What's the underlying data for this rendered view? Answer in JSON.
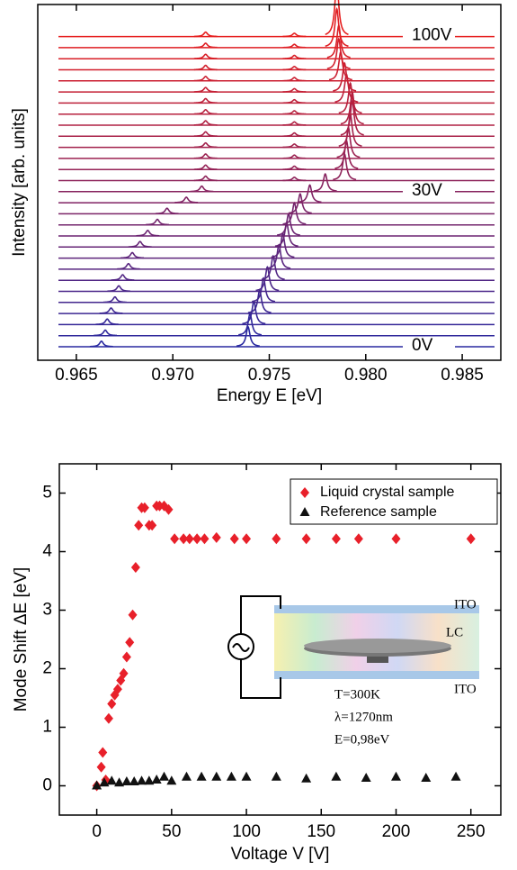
{
  "chart_data": [
    {
      "type": "waterfall",
      "xlabel": "Energy E [eV]",
      "ylabel": "Intensity [arb. units]",
      "xlim": [
        0.963,
        0.987
      ],
      "xticks": [
        0.965,
        {
          "value": 0.97,
          "label": "0.970"
        },
        0.975,
        {
          "value": 0.98,
          "label": "0.980"
        },
        0.985
      ],
      "series": [
        {
          "color": "#2828a0",
          "peaks": [
            0.9663,
            0.9739
          ],
          "heights": [
            0.5,
            1.8
          ],
          "label": "0V"
        },
        {
          "color": "#2f289b",
          "peaks": [
            0.9665,
            0.974
          ],
          "heights": [
            0.5,
            2.0
          ]
        },
        {
          "color": "#352797",
          "peaks": [
            0.9666,
            0.9742
          ],
          "heights": [
            0.5,
            2.1
          ]
        },
        {
          "color": "#3c2792",
          "peaks": [
            0.9668,
            0.9745
          ],
          "heights": [
            0.5,
            2.1
          ]
        },
        {
          "color": "#43278d",
          "peaks": [
            0.967,
            0.9747
          ],
          "heights": [
            0.5,
            2.2
          ]
        },
        {
          "color": "#4a2689",
          "peaks": [
            0.9672,
            0.9749
          ],
          "heights": [
            0.5,
            2.2
          ]
        },
        {
          "color": "#512684",
          "peaks": [
            0.9674,
            0.9752
          ],
          "heights": [
            0.5,
            2.2
          ]
        },
        {
          "color": "#582680",
          "peaks": [
            0.9677,
            0.9755
          ],
          "heights": [
            0.5,
            2.2
          ]
        },
        {
          "color": "#5e257b",
          "peaks": [
            0.9679,
            0.9757
          ],
          "heights": [
            0.5,
            2.2
          ]
        },
        {
          "color": "#652576",
          "peaks": [
            0.9683,
            0.9759
          ],
          "heights": [
            0.5,
            2.2
          ]
        },
        {
          "color": "#6c2472",
          "peaks": [
            0.9687,
            0.976
          ],
          "heights": [
            0.5,
            2.0
          ]
        },
        {
          "color": "#73246d",
          "peaks": [
            0.9692,
            0.9763
          ],
          "heights": [
            0.5,
            2.0
          ]
        },
        {
          "color": "#7a2468",
          "peaks": [
            0.9697,
            0.9766
          ],
          "heights": [
            0.5,
            1.8
          ]
        },
        {
          "color": "#802364",
          "peaks": [
            0.9707,
            0.9771
          ],
          "heights": [
            0.5,
            1.6
          ]
        },
        {
          "color": "#87235f",
          "peaks": [
            0.9715,
            0.9779
          ],
          "heights": [
            0.5,
            1.6
          ],
          "label": "30V"
        },
        {
          "color": "#8e235a",
          "peaks": [
            0.9717,
            0.9763,
            0.9789
          ],
          "heights": [
            0.4,
            0.3,
            2.4
          ]
        },
        {
          "color": "#952256",
          "peaks": [
            0.9717,
            0.9763,
            0.979
          ],
          "heights": [
            0.4,
            0.3,
            2.6
          ]
        },
        {
          "color": "#9b2251",
          "peaks": [
            0.9717,
            0.9763,
            0.9791
          ],
          "heights": [
            0.4,
            0.3,
            2.8
          ]
        },
        {
          "color": "#a2224c",
          "peaks": [
            0.9717,
            0.9763,
            0.9792
          ],
          "heights": [
            0.4,
            0.3,
            3.0
          ]
        },
        {
          "color": "#a92148",
          "peaks": [
            0.9717,
            0.9763,
            0.9793
          ],
          "heights": [
            0.4,
            0.3,
            3.2
          ]
        },
        {
          "color": "#b02143",
          "peaks": [
            0.9717,
            0.9763,
            0.9793
          ],
          "heights": [
            0.4,
            0.3,
            3.0
          ]
        },
        {
          "color": "#b7213e",
          "peaks": [
            0.9717,
            0.9763,
            0.9792
          ],
          "heights": [
            0.4,
            0.3,
            2.8
          ]
        },
        {
          "color": "#bd203a",
          "peaks": [
            0.9717,
            0.9763,
            0.979
          ],
          "heights": [
            0.4,
            0.3,
            2.6
          ]
        },
        {
          "color": "#c42035",
          "peaks": [
            0.9717,
            0.9763,
            0.9789
          ],
          "heights": [
            0.4,
            0.3,
            2.6
          ]
        },
        {
          "color": "#cb1f31",
          "peaks": [
            0.9717,
            0.9763,
            0.9787
          ],
          "heights": [
            0.4,
            0.3,
            2.6
          ]
        },
        {
          "color": "#d21f2c",
          "peaks": [
            0.9717,
            0.9763,
            0.9786
          ],
          "heights": [
            0.4,
            0.3,
            2.8
          ]
        },
        {
          "color": "#d81f27",
          "peaks": [
            0.9717,
            0.9763,
            0.9786
          ],
          "heights": [
            0.4,
            0.3,
            3.0
          ]
        },
        {
          "color": "#df1e23",
          "peaks": [
            0.9717,
            0.9763,
            0.9785
          ],
          "heights": [
            0.4,
            0.3,
            3.5
          ]
        },
        {
          "color": "#e61e1e",
          "peaks": [
            0.9717,
            0.9763,
            0.9785
          ],
          "heights": [
            0.4,
            0.3,
            5.0
          ],
          "label": "100V"
        }
      ]
    },
    {
      "type": "scatter",
      "xlabel": "Voltage V [V]",
      "ylabel": "Mode Shift ΔE [eV]",
      "xlim": [
        -25,
        270
      ],
      "ylim": [
        -0.5,
        5.5
      ],
      "xticks": [
        0,
        50,
        100,
        150,
        200,
        250
      ],
      "yticks": [
        0,
        1,
        2,
        3,
        4,
        5
      ],
      "legend": "upper right",
      "series": [
        {
          "name": "Liquid crystal sample",
          "color": "#e8202a",
          "marker": "diamond",
          "x": [
            0,
            3,
            4,
            6,
            8,
            10,
            12,
            14,
            16,
            18,
            20,
            22,
            24,
            26,
            28,
            30,
            32,
            35,
            37,
            40,
            42,
            45,
            48,
            52,
            58,
            62,
            67,
            72,
            80,
            92,
            100,
            120,
            140,
            160,
            175,
            200,
            250
          ],
          "values": [
            0,
            0.32,
            0.57,
            0.1,
            1.15,
            1.4,
            1.55,
            1.65,
            1.8,
            1.92,
            2.2,
            2.45,
            2.92,
            3.73,
            4.45,
            4.75,
            4.75,
            4.45,
            4.45,
            4.78,
            4.78,
            4.78,
            4.72,
            4.22,
            4.22,
            4.22,
            4.22,
            4.22,
            4.24,
            4.22,
            4.22,
            4.22,
            4.22,
            4.22,
            4.22,
            4.22,
            4.22
          ]
        },
        {
          "name": "Reference sample",
          "color": "#111111",
          "marker": "triangle",
          "x": [
            0,
            5,
            10,
            15,
            20,
            25,
            30,
            35,
            40,
            45,
            50,
            60,
            70,
            80,
            90,
            100,
            120,
            140,
            160,
            180,
            200,
            220,
            240
          ],
          "values": [
            0,
            0.05,
            0.08,
            0.05,
            0.07,
            0.07,
            0.08,
            0.08,
            0.1,
            0.15,
            0.08,
            0.15,
            0.15,
            0.15,
            0.15,
            0.15,
            0.15,
            0.12,
            0.15,
            0.13,
            0.15,
            0.13,
            0.15
          ]
        }
      ],
      "inset": {
        "labels": [
          "ITO",
          "LC",
          "ITO",
          "T=300K",
          "λ=1270nm",
          "E=0,98eV"
        ]
      }
    }
  ]
}
